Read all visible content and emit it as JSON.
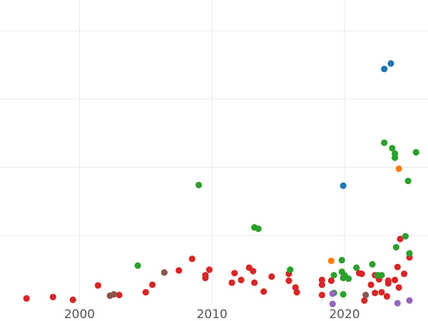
{
  "chart_data": {
    "type": "scatter",
    "title": "",
    "xlabel": "",
    "ylabel": "",
    "xlim": [
      1994,
      2026.3
    ],
    "ylim": [
      0,
      4.45
    ],
    "grid": true,
    "x_ticks": [
      2000,
      2010,
      2020
    ],
    "x_tick_labels": [
      "2000",
      "2010",
      "2020"
    ],
    "y_gridlines": [
      1,
      2,
      3,
      4
    ],
    "legend": "none",
    "series": [
      {
        "color": "#d62728",
        "points": [
          [
            1996.0,
            0.08
          ],
          [
            1998.0,
            0.1
          ],
          [
            1999.5,
            0.06
          ],
          [
            2001.4,
            0.27
          ],
          [
            2003.0,
            0.13
          ],
          [
            2005.0,
            0.17
          ],
          [
            2005.5,
            0.28
          ],
          [
            2007.5,
            0.49
          ],
          [
            2008.5,
            0.66
          ],
          [
            2009.5,
            0.42
          ],
          [
            2009.5,
            0.38
          ],
          [
            2009.8,
            0.5
          ],
          [
            2011.5,
            0.31
          ],
          [
            2011.7,
            0.45
          ],
          [
            2012.2,
            0.35
          ],
          [
            2012.8,
            0.53
          ],
          [
            2013.1,
            0.48
          ],
          [
            2013.2,
            0.31
          ],
          [
            2013.9,
            0.18
          ],
          [
            2014.5,
            0.4
          ],
          [
            2015.8,
            0.34
          ],
          [
            2015.8,
            0.44
          ],
          [
            2016.3,
            0.24
          ],
          [
            2016.4,
            0.17
          ],
          [
            2018.3,
            0.35
          ],
          [
            2018.3,
            0.28
          ],
          [
            2018.3,
            0.13
          ],
          [
            2019.0,
            0.34
          ],
          [
            2021.1,
            0.45
          ],
          [
            2021.3,
            0.44
          ],
          [
            2021.5,
            0.05
          ],
          [
            2022.0,
            0.28
          ],
          [
            2022.3,
            0.16
          ],
          [
            2022.3,
            0.42
          ],
          [
            2022.6,
            0.36
          ],
          [
            2022.8,
            0.17
          ],
          [
            2023.2,
            0.11
          ],
          [
            2023.3,
            0.34
          ],
          [
            2023.3,
            0.3
          ],
          [
            2023.8,
            0.35
          ],
          [
            2024.0,
            0.54
          ],
          [
            2024.1,
            0.24
          ],
          [
            2024.2,
            0.95
          ],
          [
            2024.5,
            0.44
          ],
          [
            2024.9,
            0.68
          ]
        ]
      },
      {
        "color": "#2ca02c",
        "points": [
          [
            2004.4,
            0.56
          ],
          [
            2009.0,
            1.74
          ],
          [
            2013.2,
            1.12
          ],
          [
            2013.5,
            1.1
          ],
          [
            2015.9,
            0.5
          ],
          [
            2019.2,
            0.42
          ],
          [
            2019.2,
            0.16
          ],
          [
            2019.8,
            0.47
          ],
          [
            2019.8,
            0.64
          ],
          [
            2019.9,
            0.14
          ],
          [
            2019.9,
            0.38
          ],
          [
            2020.0,
            0.42
          ],
          [
            2020.3,
            0.37
          ],
          [
            2020.9,
            0.53
          ],
          [
            2022.1,
            0.58
          ],
          [
            2022.5,
            0.42
          ],
          [
            2022.8,
            0.42
          ],
          [
            2023.0,
            2.36
          ],
          [
            2023.6,
            2.28
          ],
          [
            2023.8,
            2.14
          ],
          [
            2023.8,
            2.2
          ],
          [
            2023.9,
            0.83
          ],
          [
            2024.6,
            0.99
          ],
          [
            2024.8,
            1.8
          ],
          [
            2024.9,
            0.74
          ],
          [
            2025.4,
            2.22
          ]
        ]
      },
      {
        "color": "#1f77b4",
        "points": [
          [
            2019.9,
            1.73
          ],
          [
            2023.0,
            3.44
          ],
          [
            2023.5,
            3.52
          ]
        ]
      },
      {
        "color": "#ff7f0e",
        "points": [
          [
            2019.0,
            0.63
          ],
          [
            2024.1,
            1.98
          ]
        ]
      },
      {
        "color": "#8c564b",
        "points": [
          [
            2002.3,
            0.12
          ],
          [
            2002.6,
            0.14
          ],
          [
            2006.4,
            0.46
          ],
          [
            2021.6,
            0.13
          ]
        ]
      },
      {
        "color": "#9467bd",
        "points": [
          [
            2019.1,
            0.0
          ],
          [
            2019.1,
            0.15
          ],
          [
            2024.0,
            0.01
          ],
          [
            2024.9,
            0.05
          ]
        ]
      }
    ]
  }
}
